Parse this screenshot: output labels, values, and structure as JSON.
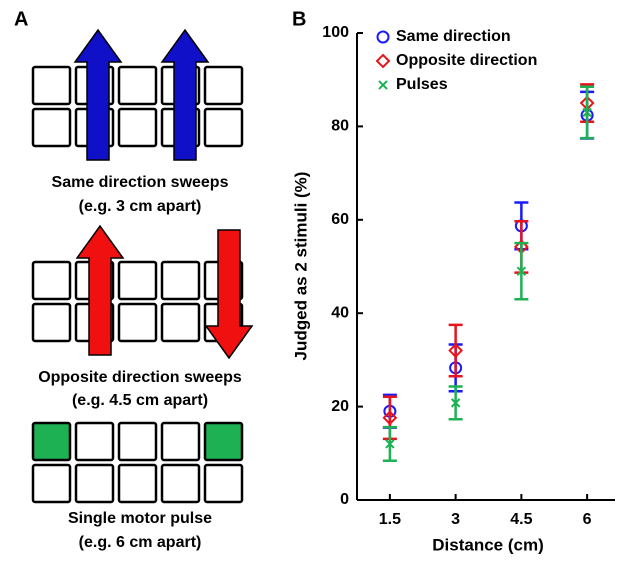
{
  "panel_a": {
    "label": "A",
    "items": [
      {
        "title": "Same direction sweeps",
        "subtitle": "(e.g. 3 cm apart)"
      },
      {
        "title": "Opposite direction sweeps",
        "subtitle": "(e.g. 4.5 cm apart)"
      },
      {
        "title": "Single motor pulse",
        "subtitle": "(e.g. 6 cm apart)"
      }
    ]
  },
  "panel_b": {
    "label": "B"
  },
  "chart_data": {
    "type": "scatter",
    "xlabel": "Distance (cm)",
    "ylabel": "Judged as 2 stimuli (%)",
    "categories": [
      "1.5",
      "3",
      "4.5",
      "6"
    ],
    "ylim": [
      0,
      100
    ],
    "yticks": [
      0,
      20,
      40,
      60,
      80,
      100
    ],
    "grid": false,
    "legend": "upper left",
    "series": [
      {
        "name": "Same direction",
        "color": "#1a1aff",
        "marker": "circle",
        "values": [
          19,
          28.3,
          58.7,
          82.4
        ],
        "errors": [
          3.5,
          5,
          5,
          5
        ]
      },
      {
        "name": "Opposite direction",
        "color": "#e8141c",
        "marker": "diamond",
        "values": [
          17.6,
          32,
          54.2,
          85
        ],
        "errors": [
          4.5,
          5.5,
          5.5,
          4
        ]
      },
      {
        "name": "Pulses",
        "color": "#1db154",
        "marker": "x",
        "values": [
          12,
          20.8,
          49,
          83
        ],
        "errors": [
          3.6,
          3.5,
          6,
          5.5
        ]
      }
    ]
  }
}
